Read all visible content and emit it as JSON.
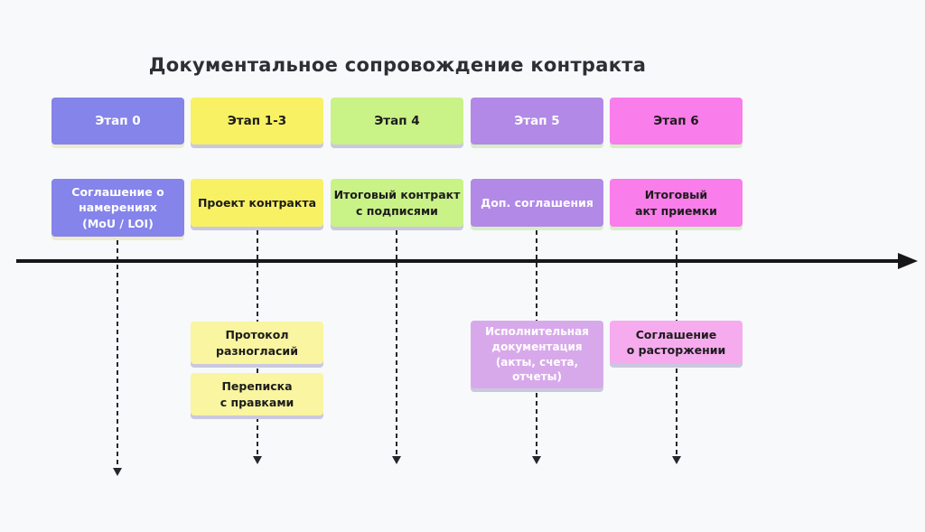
{
  "title": "Документальное сопровождение контракта",
  "colors": {
    "stage0": "#8484ea",
    "stage13": "#f8f163",
    "stage4": "#c9f287",
    "stage5": "#b289e6",
    "stage6": "#f97dea",
    "light_yellow": "#f9f5a0",
    "light_purple": "#d8a9ea",
    "light_pink": "#f6abee",
    "text_dark": "#1c1c1c",
    "text_light": "#ffffff",
    "timeline": "#17171a"
  },
  "columns": [
    {
      "header": "Этап 0",
      "doc": "Соглашение о\nнамерениях\n(MoU / LOI)",
      "below": []
    },
    {
      "header": "Этап 1-3",
      "doc": "Проект контракта",
      "below": [
        "Протокол\nразногласий",
        "Переписка\nс правками"
      ]
    },
    {
      "header": "Этап 4",
      "doc": "Итоговый контракт\nс подписями",
      "below": []
    },
    {
      "header": "Этап 5",
      "doc": "Доп. соглашения",
      "below": [
        "Исполнительная\nдокументация\n(акты, счета,\nотчеты)"
      ]
    },
    {
      "header": "Этап 6",
      "doc": "Итоговый\nакт приемки",
      "below": [
        "Соглашение\nо расторжении"
      ]
    }
  ]
}
